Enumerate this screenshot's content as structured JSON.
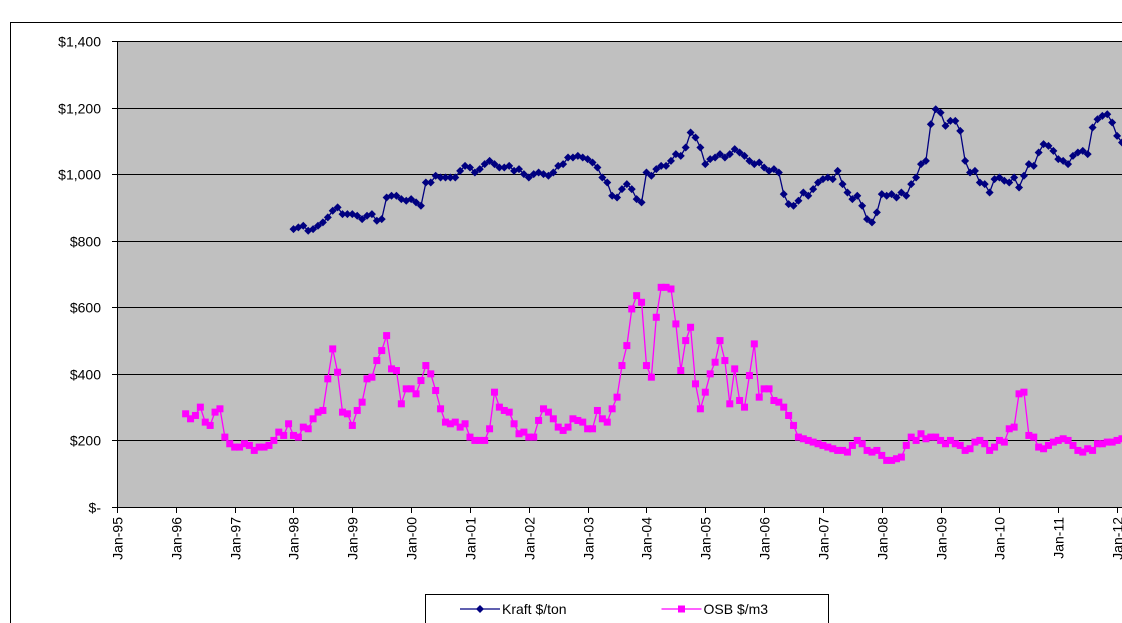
{
  "chart_data": {
    "type": "line",
    "x": [
      "1996-03",
      "1996-04",
      "1996-05",
      "1996-06",
      "1996-07",
      "1996-08",
      "1996-09",
      "1996-10",
      "1996-11",
      "1996-12",
      "1997-01",
      "1997-02",
      "1997-03",
      "1997-04",
      "1997-05",
      "1997-06",
      "1997-07",
      "1997-08",
      "1997-09",
      "1997-10",
      "1997-11",
      "1997-12",
      "1998-01",
      "1998-02",
      "1998-03",
      "1998-04",
      "1998-05",
      "1998-06",
      "1998-07",
      "1998-08",
      "1998-09",
      "1998-10",
      "1998-11",
      "1998-12",
      "1999-01",
      "1999-02",
      "1999-03",
      "1999-04",
      "1999-05",
      "1999-06",
      "1999-07",
      "1999-08",
      "1999-09",
      "1999-10",
      "1999-11",
      "1999-12",
      "2000-01",
      "2000-02",
      "2000-03",
      "2000-04",
      "2000-05",
      "2000-06",
      "2000-07",
      "2000-08",
      "2000-09",
      "2000-10",
      "2000-11",
      "2000-12",
      "2001-01",
      "2001-02",
      "2001-03",
      "2001-04",
      "2001-05",
      "2001-06",
      "2001-07",
      "2001-08",
      "2001-09",
      "2001-10",
      "2001-11",
      "2001-12",
      "2002-01",
      "2002-02",
      "2002-03",
      "2002-04",
      "2002-05",
      "2002-06",
      "2002-07",
      "2002-08",
      "2002-09",
      "2002-10",
      "2002-11",
      "2002-12",
      "2003-01",
      "2003-02",
      "2003-03",
      "2003-04",
      "2003-05",
      "2003-06",
      "2003-07",
      "2003-08",
      "2003-09",
      "2003-10",
      "2003-11",
      "2003-12",
      "2004-01",
      "2004-02",
      "2004-03",
      "2004-04",
      "2004-05",
      "2004-06",
      "2004-07",
      "2004-08",
      "2004-09",
      "2004-10",
      "2004-11",
      "2004-12",
      "2005-01",
      "2005-02",
      "2005-03",
      "2005-04",
      "2005-05",
      "2005-06",
      "2005-07",
      "2005-08",
      "2005-09",
      "2005-10",
      "2005-11",
      "2005-12",
      "2006-01",
      "2006-02",
      "2006-03",
      "2006-04",
      "2006-05",
      "2006-06",
      "2006-07",
      "2006-08",
      "2006-09",
      "2006-10",
      "2006-11",
      "2006-12",
      "2007-01",
      "2007-02",
      "2007-03",
      "2007-04",
      "2007-05",
      "2007-06",
      "2007-07",
      "2007-08",
      "2007-09",
      "2007-10",
      "2007-11",
      "2007-12",
      "2008-01",
      "2008-02",
      "2008-03",
      "2008-04",
      "2008-05",
      "2008-06",
      "2008-07",
      "2008-08",
      "2008-09",
      "2008-10",
      "2008-11",
      "2008-12",
      "2009-01",
      "2009-02",
      "2009-03",
      "2009-04",
      "2009-05",
      "2009-06",
      "2009-07",
      "2009-08",
      "2009-09",
      "2009-10",
      "2009-11",
      "2009-12",
      "2010-01",
      "2010-02",
      "2010-03",
      "2010-04",
      "2010-05",
      "2010-06",
      "2010-07",
      "2010-08",
      "2010-09",
      "2010-10",
      "2010-11",
      "2010-12",
      "2011-01",
      "2011-02",
      "2011-03",
      "2011-04",
      "2011-05",
      "2011-06",
      "2011-07",
      "2011-08",
      "2011-09",
      "2011-10",
      "2011-11",
      "2011-12",
      "2012-01",
      "2012-02"
    ],
    "series": [
      {
        "name": "Kraft $/ton",
        "color": "#000080",
        "marker": "diamond",
        "values": [
          null,
          null,
          null,
          null,
          null,
          null,
          null,
          null,
          null,
          null,
          null,
          null,
          null,
          null,
          null,
          null,
          null,
          null,
          null,
          null,
          null,
          null,
          835,
          840,
          845,
          830,
          835,
          845,
          855,
          870,
          890,
          900,
          880,
          880,
          880,
          875,
          865,
          875,
          880,
          860,
          865,
          930,
          935,
          935,
          925,
          920,
          925,
          915,
          905,
          975,
          975,
          995,
          990,
          990,
          990,
          990,
          1010,
          1025,
          1020,
          1005,
          1015,
          1030,
          1040,
          1030,
          1020,
          1020,
          1025,
          1010,
          1015,
          1000,
          990,
          1000,
          1005,
          1000,
          995,
          1005,
          1025,
          1030,
          1050,
          1050,
          1055,
          1050,
          1045,
          1035,
          1020,
          990,
          975,
          935,
          930,
          955,
          970,
          955,
          925,
          915,
          1005,
          995,
          1015,
          1025,
          1025,
          1040,
          1060,
          1055,
          1080,
          1125,
          1110,
          1080,
          1030,
          1045,
          1050,
          1060,
          1050,
          1060,
          1075,
          1065,
          1055,
          1040,
          1030,
          1035,
          1020,
          1010,
          1015,
          1005,
          940,
          910,
          905,
          920,
          945,
          935,
          955,
          975,
          985,
          990,
          985,
          1010,
          970,
          945,
          925,
          935,
          905,
          865,
          855,
          885,
          940,
          935,
          940,
          930,
          945,
          935,
          970,
          990,
          1030,
          1040,
          1150,
          1195,
          1185,
          1145,
          1160,
          1160,
          1130,
          1040,
          1005,
          1010,
          975,
          970,
          945,
          985,
          990,
          980,
          975,
          990,
          960,
          995,
          1030,
          1025,
          1065,
          1090,
          1085,
          1070,
          1045,
          1040,
          1030,
          1055,
          1065,
          1070,
          1060,
          1140,
          1165,
          1175,
          1180,
          1155,
          1115,
          1095
        ]
      },
      {
        "name": "OSB $/m3",
        "color": "#ff00ff",
        "marker": "square",
        "values": [
          280,
          265,
          275,
          300,
          255,
          245,
          285,
          295,
          210,
          190,
          180,
          180,
          190,
          185,
          170,
          180,
          180,
          185,
          200,
          225,
          215,
          250,
          215,
          210,
          240,
          235,
          265,
          285,
          290,
          385,
          475,
          405,
          285,
          280,
          245,
          290,
          315,
          385,
          390,
          440,
          470,
          515,
          415,
          410,
          310,
          355,
          355,
          340,
          380,
          425,
          400,
          350,
          295,
          255,
          250,
          255,
          240,
          250,
          210,
          200,
          200,
          200,
          235,
          345,
          300,
          290,
          285,
          250,
          220,
          225,
          210,
          210,
          260,
          295,
          285,
          265,
          240,
          230,
          240,
          265,
          260,
          255,
          235,
          235,
          290,
          265,
          255,
          295,
          330,
          425,
          485,
          595,
          635,
          615,
          425,
          390,
          570,
          660,
          660,
          655,
          550,
          410,
          500,
          540,
          370,
          295,
          345,
          400,
          435,
          500,
          440,
          310,
          415,
          320,
          300,
          395,
          490,
          330,
          355,
          355,
          320,
          315,
          300,
          275,
          245,
          210,
          205,
          200,
          195,
          190,
          185,
          180,
          175,
          170,
          170,
          165,
          185,
          200,
          190,
          170,
          165,
          170,
          155,
          140,
          140,
          145,
          150,
          185,
          210,
          200,
          220,
          205,
          210,
          210,
          200,
          190,
          200,
          190,
          185,
          170,
          175,
          195,
          200,
          190,
          170,
          180,
          200,
          195,
          235,
          240,
          340,
          345,
          215,
          210,
          180,
          175,
          185,
          195,
          200,
          205,
          200,
          185,
          170,
          165,
          175,
          170,
          190,
          190,
          195,
          195,
          200,
          205
        ]
      }
    ],
    "xlim": [
      "1995-01",
      "2012-02"
    ],
    "xticks": [
      {
        "value": "1995-01",
        "label": "Jan-95"
      },
      {
        "value": "1996-01",
        "label": "Jan-96"
      },
      {
        "value": "1997-01",
        "label": "Jan-97"
      },
      {
        "value": "1998-01",
        "label": "Jan-98"
      },
      {
        "value": "1999-01",
        "label": "Jan-99"
      },
      {
        "value": "2000-01",
        "label": "Jan-00"
      },
      {
        "value": "2001-01",
        "label": "Jan-01"
      },
      {
        "value": "2002-01",
        "label": "Jan-02"
      },
      {
        "value": "2003-01",
        "label": "Jan-03"
      },
      {
        "value": "2004-01",
        "label": "Jan-04"
      },
      {
        "value": "2005-01",
        "label": "Jan-05"
      },
      {
        "value": "2006-01",
        "label": "Jan-06"
      },
      {
        "value": "2007-01",
        "label": "Jan-07"
      },
      {
        "value": "2008-01",
        "label": "Jan-08"
      },
      {
        "value": "2009-01",
        "label": "Jan-09"
      },
      {
        "value": "2010-01",
        "label": "Jan-10"
      },
      {
        "value": "2011-01",
        "label": "Jan-11"
      },
      {
        "value": "2012-01",
        "label": "Jan-12"
      }
    ],
    "ylim": [
      0,
      1400
    ],
    "yticks": [
      {
        "value": 0,
        "label": "$-"
      },
      {
        "value": 200,
        "label": "$200"
      },
      {
        "value": 400,
        "label": "$400"
      },
      {
        "value": 600,
        "label": "$600"
      },
      {
        "value": 800,
        "label": "$800"
      },
      {
        "value": 1000,
        "label": "$1,000"
      },
      {
        "value": 1200,
        "label": "$1,200"
      },
      {
        "value": 1400,
        "label": "$1,400"
      }
    ],
    "grid": true,
    "plot_background": "#c0c0c0",
    "legend": "bottom"
  }
}
